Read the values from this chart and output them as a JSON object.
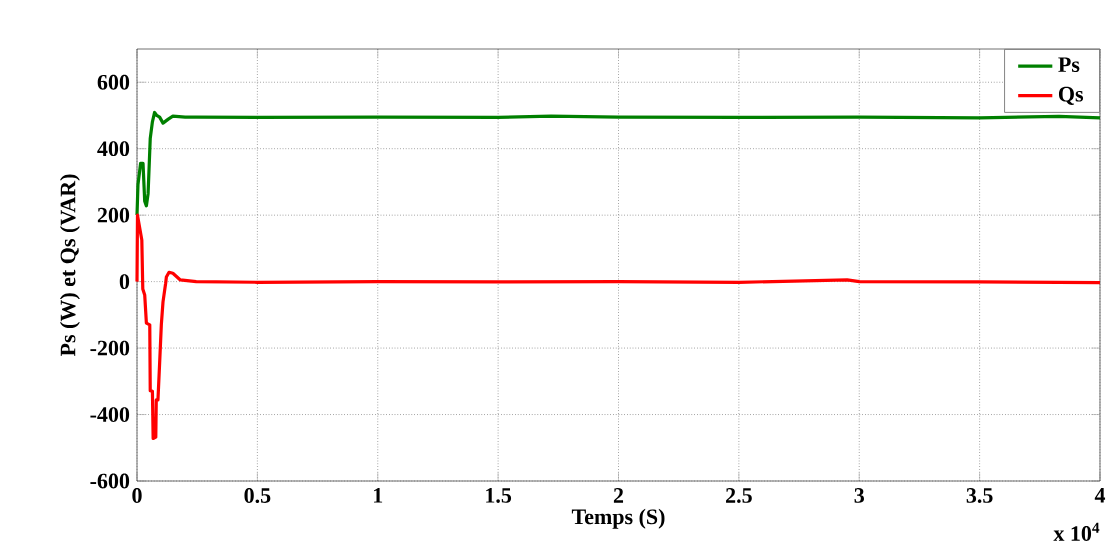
{
  "chart_data": {
    "type": "line",
    "xlabel": "Temps (S)",
    "ylabel": "Ps (W) et Qs (VAR)",
    "annotations": [
      "x 10$^{4}$"
    ],
    "xlim": [
      0,
      4
    ],
    "ylim": [
      -600,
      700
    ],
    "xticks": [
      0,
      0.5,
      1,
      1.5,
      2,
      2.5,
      3,
      3.5,
      4
    ],
    "yticks": [
      -600,
      -400,
      -200,
      0,
      200,
      400,
      600
    ],
    "grid": true,
    "legend": "top right",
    "series": [
      {
        "name": "Ps",
        "color": "#008000",
        "x": [
          0,
          0.004,
          0.015,
          0.025,
          0.032,
          0.039,
          0.046,
          0.055,
          0.064,
          0.073,
          0.082,
          0.094,
          0.108,
          0.13,
          0.149,
          0.2,
          0.246,
          0.5,
          1,
          1.5,
          1.72,
          2,
          2.5,
          3,
          3.5,
          3.83,
          4
        ],
        "values": [
          200,
          292,
          356,
          356,
          242,
          228,
          264,
          431,
          481,
          509,
          500,
          495,
          477,
          489,
          498,
          495,
          495,
          494,
          495,
          494,
          498,
          495,
          494,
          495,
          493,
          497,
          493
        ]
      },
      {
        "name": "Qs",
        "color": "#ff0000",
        "x": [
          0,
          0.002,
          0.02,
          0.024,
          0.032,
          0.039,
          0.053,
          0.055,
          0.064,
          0.067,
          0.078,
          0.08,
          0.087,
          0.094,
          0.101,
          0.108,
          0.119,
          0.122,
          0.133,
          0.149,
          0.18,
          0.246,
          0.5,
          1,
          1.5,
          2,
          2.5,
          2.95,
          3,
          3.5,
          4
        ],
        "values": [
          0,
          200,
          125,
          -22,
          -40,
          -125,
          -130,
          -328,
          -330,
          -472,
          -468,
          -356,
          -356,
          -245,
          -130,
          -61,
          -5,
          14,
          28,
          25,
          5,
          0,
          -2,
          0,
          -1,
          0,
          -2,
          5,
          0,
          -1,
          -3
        ]
      }
    ]
  }
}
